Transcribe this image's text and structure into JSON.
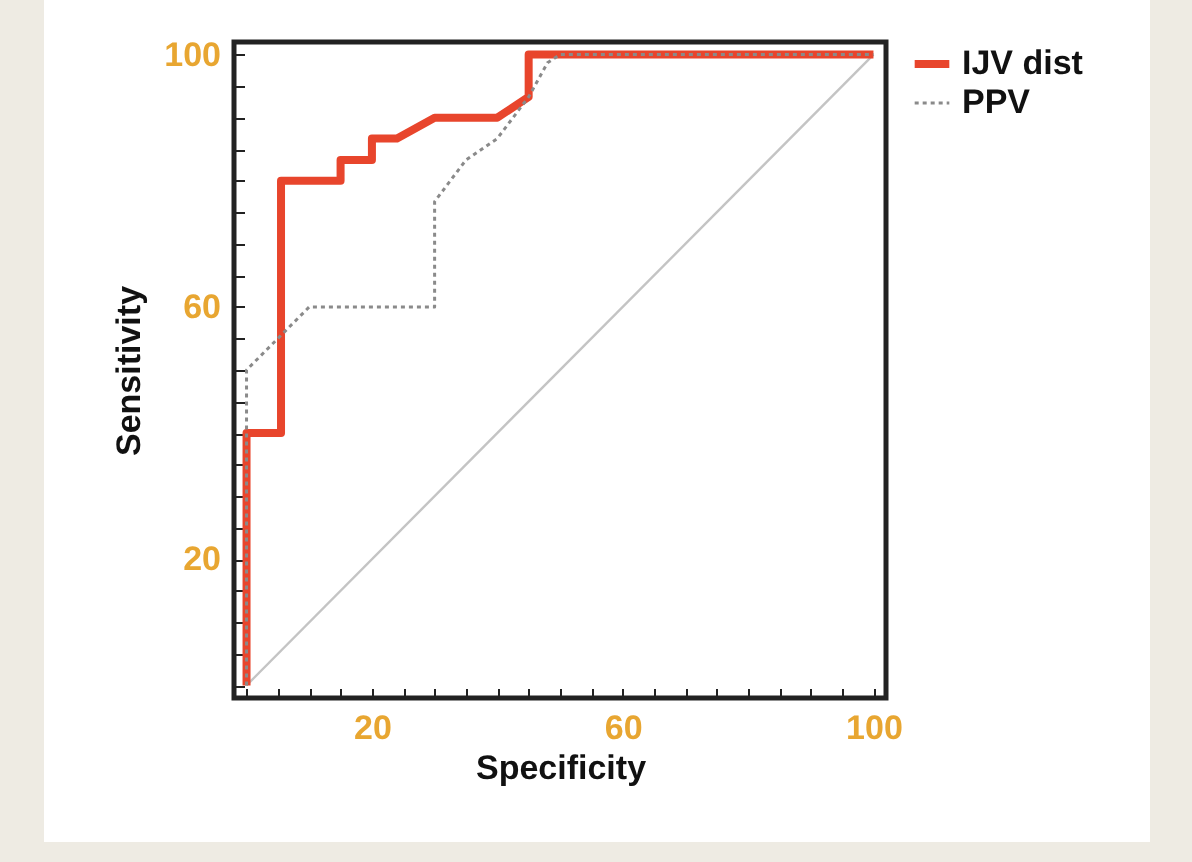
{
  "chart_data": {
    "type": "line",
    "xlabel": "Specificity",
    "ylabel": "Sensitivity",
    "xlim": [
      -2,
      102
    ],
    "ylim": [
      -2,
      102
    ],
    "xticks": [
      {
        "value": 0,
        "label": null
      },
      {
        "value": 5,
        "label": null
      },
      {
        "value": 10,
        "label": null
      },
      {
        "value": 15,
        "label": null
      },
      20,
      {
        "value": 25,
        "label": null
      },
      {
        "value": 30,
        "label": null
      },
      {
        "value": 35,
        "label": null
      },
      {
        "value": 40,
        "label": null
      },
      {
        "value": 45,
        "label": null
      },
      {
        "value": 50,
        "label": null
      },
      {
        "value": 55,
        "label": null
      },
      60,
      {
        "value": 65,
        "label": null
      },
      {
        "value": 70,
        "label": null
      },
      {
        "value": 75,
        "label": null
      },
      {
        "value": 80,
        "label": null
      },
      {
        "value": 85,
        "label": null
      },
      {
        "value": 90,
        "label": null
      },
      {
        "value": 95,
        "label": null
      },
      100
    ],
    "yticks": [
      {
        "value": 0,
        "label": null
      },
      {
        "value": 5,
        "label": null
      },
      {
        "value": 10,
        "label": null
      },
      {
        "value": 15,
        "label": null
      },
      20,
      {
        "value": 25,
        "label": null
      },
      {
        "value": 30,
        "label": null
      },
      {
        "value": 35,
        "label": null
      },
      {
        "value": 40,
        "label": null
      },
      {
        "value": 45,
        "label": null
      },
      {
        "value": 50,
        "label": null
      },
      {
        "value": 55,
        "label": null
      },
      60,
      {
        "value": 65,
        "label": null
      },
      {
        "value": 70,
        "label": null
      },
      {
        "value": 75,
        "label": null
      },
      {
        "value": 80,
        "label": null
      },
      {
        "value": 85,
        "label": null
      },
      {
        "value": 90,
        "label": null
      },
      {
        "value": 95,
        "label": null
      },
      100
    ],
    "grid": false,
    "legend": "top right",
    "marker": "none",
    "series": [
      {
        "name": "IJV dist",
        "color": "#e8452c",
        "line_style": "solid",
        "x": [
          0,
          0,
          5.5,
          5.5,
          15,
          15,
          20,
          20,
          24,
          30,
          40,
          45,
          45,
          100
        ],
        "values": [
          0,
          40,
          40,
          80,
          80,
          83.3,
          83.3,
          86.7,
          86.7,
          90,
          90,
          93.3,
          100,
          100
        ]
      },
      {
        "name": "PPV",
        "color": "#8a8a8a",
        "line_style": "dotted",
        "x": [
          0,
          0,
          10,
          30,
          30,
          35,
          40,
          45,
          48,
          50,
          100
        ],
        "values": [
          0,
          50,
          60,
          60,
          76.7,
          83.3,
          86.7,
          93.3,
          98.7,
          100,
          100
        ]
      },
      {
        "color": "#c4c4c4",
        "line_style": "solid",
        "x": [
          0,
          100
        ],
        "values": [
          0,
          100
        ]
      }
    ]
  }
}
